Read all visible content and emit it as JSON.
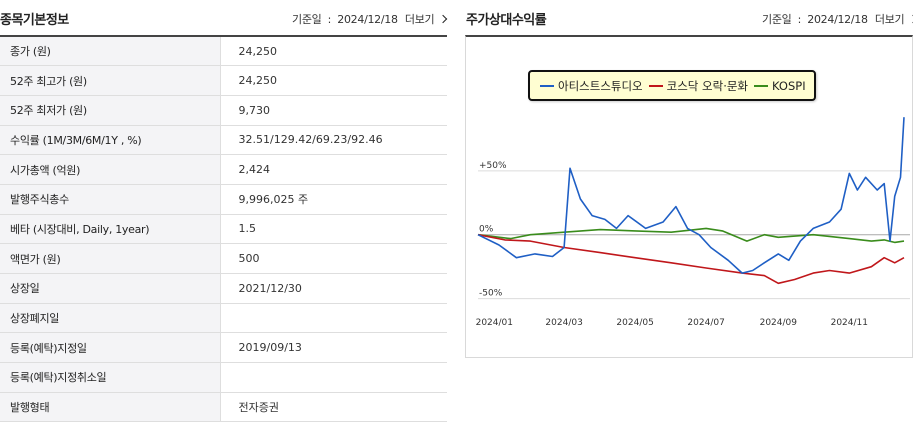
{
  "left": {
    "title": "종목기본정보",
    "ref_label": "기준일",
    "ref_sep": ":",
    "ref_date": "2024/12/18",
    "more": "더보기",
    "rows": [
      {
        "label": "종가 (원)",
        "value": "24,250"
      },
      {
        "label": "52주 최고가 (원)",
        "value": "24,250"
      },
      {
        "label": "52주 최저가 (원)",
        "value": "9,730"
      },
      {
        "label": "수익률 (1M/3M/6M/1Y , %)",
        "value": "32.51/129.42/69.23/92.46"
      },
      {
        "label": "시가총액 (억원)",
        "value": "2,424"
      },
      {
        "label": "발행주식총수",
        "value": "9,996,025 주"
      },
      {
        "label": "베타 (시장대비, Daily, 1year)",
        "value": "1.5"
      },
      {
        "label": "액면가 (원)",
        "value": "500"
      },
      {
        "label": "상장일",
        "value": "2021/12/30"
      },
      {
        "label": "상장폐지일",
        "value": ""
      },
      {
        "label": "등록(예탁)지정일",
        "value": "2019/09/13"
      },
      {
        "label": "등록(예탁)지정취소일",
        "value": ""
      },
      {
        "label": "발행형태",
        "value": "전자증권"
      }
    ]
  },
  "right": {
    "title": "주가상대수익률",
    "ref_label": "기준일",
    "ref_sep": ":",
    "ref_date": "2024/12/18",
    "more": "더보기"
  },
  "chart_data": {
    "type": "line",
    "title": "",
    "xlabel": "",
    "ylabel": "",
    "x_ticks": [
      "2024/01",
      "2024/03",
      "2024/05",
      "2024/07",
      "2024/09",
      "2024/11"
    ],
    "y_ticks": [
      "+50%",
      "0%",
      "-50%"
    ],
    "ylim": [
      -55,
      100
    ],
    "grid": true,
    "legend_position": "top-center",
    "x_range": [
      "2023-12-18",
      "2024-12-18"
    ],
    "series": [
      {
        "name": "아티스트스튜디오",
        "color": "#1f5fc5",
        "points": [
          [
            "2023-12-18",
            0
          ],
          [
            "2024-01-05",
            -8
          ],
          [
            "2024-01-20",
            -18
          ],
          [
            "2024-02-05",
            -15
          ],
          [
            "2024-02-20",
            -17
          ],
          [
            "2024-03-01",
            -10
          ],
          [
            "2024-03-06",
            52
          ],
          [
            "2024-03-15",
            28
          ],
          [
            "2024-03-25",
            15
          ],
          [
            "2024-04-05",
            12
          ],
          [
            "2024-04-15",
            5
          ],
          [
            "2024-04-25",
            15
          ],
          [
            "2024-05-10",
            5
          ],
          [
            "2024-05-25",
            10
          ],
          [
            "2024-06-05",
            22
          ],
          [
            "2024-06-15",
            5
          ],
          [
            "2024-06-25",
            0
          ],
          [
            "2024-07-05",
            -10
          ],
          [
            "2024-07-20",
            -20
          ],
          [
            "2024-08-01",
            -30
          ],
          [
            "2024-08-10",
            -28
          ],
          [
            "2024-08-20",
            -22
          ],
          [
            "2024-09-01",
            -15
          ],
          [
            "2024-09-10",
            -20
          ],
          [
            "2024-09-20",
            -5
          ],
          [
            "2024-10-01",
            5
          ],
          [
            "2024-10-15",
            10
          ],
          [
            "2024-10-25",
            20
          ],
          [
            "2024-11-01",
            48
          ],
          [
            "2024-11-08",
            35
          ],
          [
            "2024-11-15",
            45
          ],
          [
            "2024-11-25",
            35
          ],
          [
            "2024-12-01",
            40
          ],
          [
            "2024-12-06",
            -5
          ],
          [
            "2024-12-10",
            30
          ],
          [
            "2024-12-15",
            45
          ],
          [
            "2024-12-18",
            92
          ]
        ]
      },
      {
        "name": "코스닥 오락·문화",
        "color": "#c0171b",
        "points": [
          [
            "2023-12-18",
            0
          ],
          [
            "2024-01-10",
            -4
          ],
          [
            "2024-02-01",
            -5
          ],
          [
            "2024-03-01",
            -10
          ],
          [
            "2024-04-01",
            -14
          ],
          [
            "2024-05-01",
            -18
          ],
          [
            "2024-06-01",
            -22
          ],
          [
            "2024-07-01",
            -26
          ],
          [
            "2024-08-01",
            -30
          ],
          [
            "2024-08-20",
            -32
          ],
          [
            "2024-09-01",
            -38
          ],
          [
            "2024-09-15",
            -35
          ],
          [
            "2024-10-01",
            -30
          ],
          [
            "2024-10-15",
            -28
          ],
          [
            "2024-11-01",
            -30
          ],
          [
            "2024-11-20",
            -25
          ],
          [
            "2024-12-01",
            -18
          ],
          [
            "2024-12-10",
            -22
          ],
          [
            "2024-12-18",
            -18
          ]
        ]
      },
      {
        "name": "KOSPI",
        "color": "#3a8c1c",
        "points": [
          [
            "2023-12-18",
            0
          ],
          [
            "2024-01-15",
            -3
          ],
          [
            "2024-02-01",
            0
          ],
          [
            "2024-03-01",
            2
          ],
          [
            "2024-04-01",
            4
          ],
          [
            "2024-05-01",
            3
          ],
          [
            "2024-06-01",
            2
          ],
          [
            "2024-07-01",
            5
          ],
          [
            "2024-07-15",
            3
          ],
          [
            "2024-08-05",
            -5
          ],
          [
            "2024-08-20",
            0
          ],
          [
            "2024-09-01",
            -2
          ],
          [
            "2024-10-01",
            0
          ],
          [
            "2024-11-01",
            -3
          ],
          [
            "2024-11-20",
            -5
          ],
          [
            "2024-12-01",
            -4
          ],
          [
            "2024-12-10",
            -6
          ],
          [
            "2024-12-18",
            -5
          ]
        ]
      }
    ]
  }
}
